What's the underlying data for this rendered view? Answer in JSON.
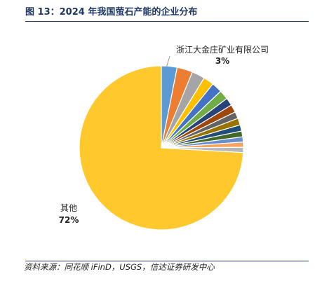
{
  "header": {
    "title": "图 13：2024 年我国萤石产能的企业分布"
  },
  "footer": {
    "source": "资料来源：同花顺 iFinD，USGS，信达证券研发中心"
  },
  "chart_data": {
    "type": "pie",
    "title": "图 13：2024 年我国萤石产能的企业分布",
    "start_angle_deg": 0,
    "direction": "clockwise",
    "slices": [
      {
        "name": "浙江大金庄矿业有限公司",
        "value": 3,
        "color": "#5b9bd5",
        "label": "浙江大金庄矿业有限公司",
        "value_label": "3%"
      },
      {
        "name": "",
        "value": 3,
        "color": "#ed7d31"
      },
      {
        "name": "",
        "value": 2.5,
        "color": "#a5a5a5"
      },
      {
        "name": "",
        "value": 2,
        "color": "#ffc000"
      },
      {
        "name": "",
        "value": 2,
        "color": "#4472c4"
      },
      {
        "name": "",
        "value": 1.8,
        "color": "#70ad47"
      },
      {
        "name": "",
        "value": 1.5,
        "color": "#264478"
      },
      {
        "name": "",
        "value": 1.5,
        "color": "#9e480e"
      },
      {
        "name": "",
        "value": 1.3,
        "color": "#636363"
      },
      {
        "name": "",
        "value": 1.3,
        "color": "#997300"
      },
      {
        "name": "",
        "value": 1.2,
        "color": "#1f4e79"
      },
      {
        "name": "",
        "value": 1.1,
        "color": "#43682b"
      },
      {
        "name": "",
        "value": 1,
        "color": "#698ed0"
      },
      {
        "name": "",
        "value": 1,
        "color": "#f4a460"
      },
      {
        "name": "",
        "value": 1,
        "color": "#b7b7b7"
      },
      {
        "name": "其他",
        "value": 72,
        "color": "#ffc92e",
        "label": "其他",
        "value_label": "72%"
      }
    ]
  }
}
